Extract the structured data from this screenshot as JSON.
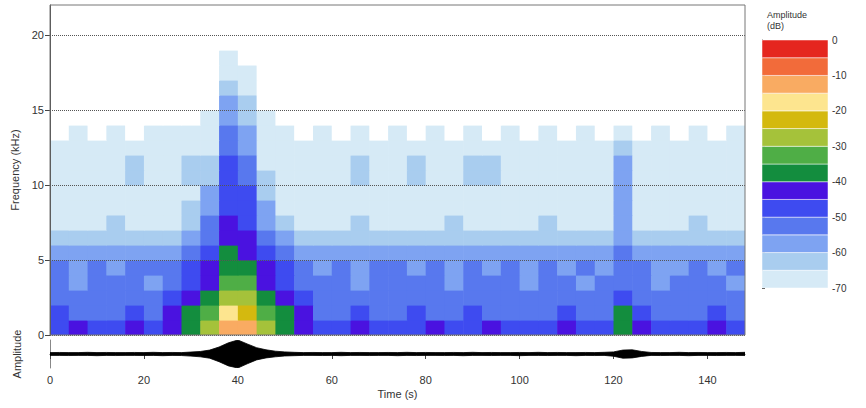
{
  "chart_data": [
    {
      "type": "spectrogram",
      "ylabel": "Frequency (kHz)",
      "xlim": [
        0,
        148
      ],
      "ylim": [
        0,
        22
      ],
      "yticks": [
        0,
        5,
        10,
        15,
        20
      ],
      "grid": true,
      "tick_labels": "y",
      "x_edges": [
        0,
        4,
        8,
        12,
        16,
        20,
        24,
        28,
        32,
        36,
        40,
        44,
        48,
        52,
        56,
        60,
        64,
        68,
        72,
        76,
        80,
        84,
        88,
        92,
        96,
        100,
        104,
        108,
        112,
        116,
        120,
        124,
        128,
        132,
        136,
        140,
        144,
        148
      ],
      "y_edges": [
        0,
        1,
        2,
        3,
        4,
        5,
        6,
        7,
        8,
        9,
        10,
        11,
        12,
        13,
        14,
        15,
        16,
        17,
        18,
        19,
        20,
        21,
        22
      ],
      "cells": [
        [
          -47,
          -45,
          -47,
          -46,
          -45,
          -47,
          -42,
          -38,
          -30,
          -15,
          -15,
          -28,
          -36,
          -42,
          -46,
          -47,
          -45,
          -47,
          -46,
          -47,
          -45,
          -47,
          -46,
          -45,
          -47,
          -46,
          -47,
          -45,
          -46,
          -47,
          -40,
          -45,
          -47,
          -46,
          -47,
          -45,
          -47
        ],
        [
          -50,
          -53,
          -51,
          -54,
          -50,
          -52,
          -45,
          -40,
          -33,
          -20,
          -22,
          -32,
          -40,
          -45,
          -51,
          -53,
          -50,
          -54,
          -52,
          -50,
          -53,
          -51,
          -50,
          -54,
          -52,
          -51,
          -53,
          -50,
          -52,
          -51,
          -38,
          -50,
          -52,
          -53,
          -51,
          -50,
          -52
        ],
        [
          -52,
          -55,
          -53,
          -51,
          -54,
          -52,
          -50,
          -45,
          -38,
          -28,
          -28,
          -37,
          -45,
          -50,
          -53,
          -51,
          -55,
          -52,
          -53,
          -51,
          -54,
          -52,
          -53,
          -55,
          -51,
          -53,
          -52,
          -54,
          -51,
          -53,
          -48,
          -52,
          -54,
          -51,
          -53,
          -55,
          -52
        ],
        [
          -54,
          -56,
          -53,
          -55,
          -52,
          -56,
          -52,
          -48,
          -42,
          -33,
          -34,
          -42,
          -48,
          -53,
          -55,
          -53,
          -56,
          -54,
          -52,
          -55,
          -53,
          -56,
          -54,
          -52,
          -55,
          -56,
          -53,
          -54,
          -56,
          -53,
          -52,
          -54,
          -56,
          -53,
          -55,
          -54,
          -56
        ],
        [
          -55,
          -57,
          -54,
          -56,
          -55,
          -53,
          -54,
          -50,
          -45,
          -37,
          -38,
          -45,
          -50,
          -55,
          -56,
          -54,
          -57,
          -55,
          -53,
          -56,
          -55,
          -57,
          -54,
          -56,
          -55,
          -57,
          -54,
          -56,
          -55,
          -57,
          -54,
          -55,
          -57,
          -56,
          -54,
          -56,
          -55
        ],
        [
          -58,
          -60,
          -57,
          -59,
          -58,
          -60,
          -57,
          -54,
          -48,
          -40,
          -41,
          -48,
          -54,
          -58,
          -59,
          -57,
          -60,
          -58,
          -59,
          -57,
          -60,
          -59,
          -58,
          -60,
          -57,
          -59,
          -58,
          -60,
          -59,
          -58,
          -55,
          -59,
          -60,
          -58,
          -59,
          -60,
          -58
        ],
        [
          -63,
          -64,
          -62,
          -64,
          -63,
          -62,
          -62,
          -60,
          -52,
          -42,
          -44,
          -52,
          -60,
          -63,
          -64,
          -62,
          -63,
          -64,
          -62,
          -63,
          -64,
          -63,
          -62,
          -64,
          -63,
          -62,
          -64,
          -63,
          -62,
          -64,
          -58,
          -63,
          -64,
          -62,
          -63,
          -64,
          -63
        ],
        [
          -66,
          -67,
          -66,
          -65,
          -67,
          -66,
          -66,
          -64,
          -55,
          -44,
          -46,
          -56,
          -63,
          -66,
          -67,
          -66,
          -65,
          -67,
          -66,
          -67,
          -66,
          -65,
          -67,
          -66,
          -67,
          -66,
          -65,
          -67,
          -66,
          -67,
          -60,
          -66,
          -67,
          -66,
          -65,
          -67,
          -66
        ],
        [
          -67,
          -68,
          -67,
          -68,
          -66,
          -67,
          -67,
          -65,
          -58,
          -46,
          -48,
          -60,
          -66,
          -67,
          -68,
          -67,
          -66,
          -68,
          -67,
          -68,
          -66,
          -67,
          -67,
          -66,
          -68,
          -67,
          -68,
          -67,
          -66,
          -68,
          -60,
          -67,
          -68,
          -67,
          -66,
          -68,
          -67
        ],
        [
          -67,
          -68,
          -68,
          -67,
          -66,
          -68,
          -68,
          -66,
          -60,
          -47,
          -50,
          -62,
          -67,
          -68,
          -67,
          -68,
          -66,
          -67,
          -68,
          -67,
          -66,
          -68,
          -67,
          -66,
          -68,
          -67,
          -67,
          -68,
          -67,
          -68,
          -58,
          -68,
          -67,
          -68,
          -67,
          -66,
          -68
        ],
        [
          -68,
          -68,
          -67,
          -68,
          -64,
          -68,
          -68,
          -64,
          -62,
          -48,
          -52,
          -64,
          -67,
          -68,
          -68,
          -67,
          -64,
          -68,
          -67,
          -64,
          -68,
          -67,
          -64,
          -64,
          -68,
          -67,
          -68,
          -67,
          -68,
          -67,
          -56,
          -68,
          -67,
          -68,
          -68,
          -67,
          -68
        ],
        [
          -69,
          -68,
          -69,
          -68,
          -65,
          -69,
          -68,
          -65,
          -64,
          -50,
          -54,
          -66,
          -68,
          -69,
          -68,
          -69,
          -65,
          -68,
          -69,
          -65,
          -68,
          -69,
          -65,
          -65,
          -69,
          -68,
          -69,
          -68,
          -69,
          -68,
          -58,
          -69,
          -68,
          -69,
          -68,
          -69,
          -69
        ],
        [
          -70,
          -69,
          -70,
          -69,
          -66,
          -70,
          -69,
          -66,
          -66,
          -52,
          -56,
          -68,
          -69,
          -70,
          -69,
          -70,
          -67,
          -69,
          -70,
          -67,
          -69,
          -70,
          -67,
          -67,
          -70,
          -69,
          -70,
          -69,
          -70,
          -69,
          -62,
          -70,
          -69,
          -70,
          -69,
          -70,
          -69
        ],
        [
          -71,
          -70,
          -71,
          -70,
          -71,
          -70,
          -70,
          -69,
          -68,
          -55,
          -58,
          -69,
          -70,
          -71,
          -70,
          -71,
          -70,
          -71,
          -70,
          -71,
          -70,
          -71,
          -70,
          -71,
          -70,
          -71,
          -70,
          -71,
          -70,
          -71,
          -66,
          -71,
          -70,
          -71,
          -70,
          -71,
          -70
        ],
        [
          -72,
          -71,
          -72,
          -72,
          -71,
          -72,
          -72,
          -71,
          -70,
          -57,
          -61,
          -70,
          -72,
          -72,
          -72,
          -71,
          -72,
          -72,
          -71,
          -72,
          -72,
          -71,
          -72,
          -72,
          -71,
          -72,
          -72,
          -71,
          -72,
          -72,
          -72,
          -71,
          -72,
          -72,
          -71,
          -72,
          -72
        ],
        [
          -73,
          -73,
          -73,
          -73,
          -73,
          -73,
          -73,
          -73,
          -72,
          -60,
          -64,
          -72,
          -73,
          -73,
          -73,
          -73,
          -73,
          -73,
          -73,
          -73,
          -73,
          -73,
          -73,
          -73,
          -73,
          -73,
          -73,
          -73,
          -73,
          -73,
          -73,
          -73,
          -73,
          -73,
          -73,
          -73,
          -73
        ],
        [
          -74,
          -74,
          -74,
          -74,
          -74,
          -74,
          -74,
          -74,
          -73,
          -63,
          -67,
          -73,
          -74,
          -74,
          -74,
          -74,
          -74,
          -74,
          -74,
          -74,
          -74,
          -74,
          -74,
          -74,
          -74,
          -74,
          -74,
          -74,
          -74,
          -74,
          -74,
          -74,
          -74,
          -74,
          -74,
          -74,
          -74
        ],
        [
          -75,
          -75,
          -75,
          -75,
          -75,
          -75,
          -75,
          -75,
          -75,
          -66,
          -69,
          -75,
          -75,
          -75,
          -75,
          -75,
          -75,
          -75,
          -75,
          -75,
          -75,
          -75,
          -75,
          -75,
          -75,
          -75,
          -75,
          -75,
          -75,
          -75,
          -75,
          -75,
          -75,
          -75,
          -75,
          -75,
          -75
        ],
        [
          -75,
          -75,
          -75,
          -75,
          -75,
          -75,
          -75,
          -75,
          -75,
          -69,
          -72,
          -75,
          -75,
          -75,
          -75,
          -75,
          -75,
          -75,
          -75,
          -75,
          -75,
          -75,
          -75,
          -75,
          -75,
          -75,
          -75,
          -75,
          -75,
          -75,
          -75,
          -75,
          -75,
          -75,
          -75,
          -75,
          -75
        ],
        [
          -75,
          -75,
          -75,
          -75,
          -75,
          -75,
          -75,
          -75,
          -75,
          -75,
          -75,
          -75,
          -75,
          -75,
          -75,
          -75,
          -75,
          -75,
          -75,
          -75,
          -75,
          -75,
          -75,
          -75,
          -75,
          -75,
          -75,
          -75,
          -75,
          -75,
          -75,
          -75,
          -75,
          -75,
          -75,
          -75,
          -75
        ],
        [
          -75,
          -75,
          -75,
          -75,
          -75,
          -75,
          -75,
          -75,
          -75,
          -75,
          -75,
          -75,
          -75,
          -75,
          -75,
          -75,
          -75,
          -75,
          -75,
          -75,
          -75,
          -75,
          -75,
          -75,
          -75,
          -75,
          -75,
          -75,
          -75,
          -75,
          -75,
          -75,
          -75,
          -75,
          -75,
          -75,
          -75
        ],
        [
          -75,
          -75,
          -75,
          -75,
          -75,
          -75,
          -75,
          -75,
          -75,
          -75,
          -75,
          -75,
          -75,
          -75,
          -75,
          -75,
          -75,
          -75,
          -75,
          -75,
          -75,
          -75,
          -75,
          -75,
          -75,
          -75,
          -75,
          -75,
          -75,
          -75,
          -75,
          -75,
          -75,
          -75,
          -75,
          -75,
          -75
        ]
      ],
      "colorbar": {
        "title": "Amplitude (dB)",
        "range": [
          -70,
          0
        ],
        "ticks": [
          0,
          -10,
          -20,
          -30,
          -40,
          -50,
          -60,
          -70
        ],
        "bins": [
          -70,
          -65,
          -60,
          -55,
          -50,
          -45,
          -40,
          -35,
          -30,
          -25,
          -20,
          -15,
          -10,
          -5,
          0
        ],
        "colors": [
          "#d6eaf6",
          "#a9cdef",
          "#7ea3f2",
          "#5878ee",
          "#3e4bf0",
          "#4a12e0",
          "#138d3e",
          "#4fae46",
          "#a5c23a",
          "#d4b90f",
          "#fde58f",
          "#f9ab62",
          "#f26b3a",
          "#e5261f"
        ]
      }
    },
    {
      "type": "line",
      "xlabel": "Time (s)",
      "ylabel": "Amplitude",
      "xlim": [
        0,
        148
      ],
      "xticks": [
        0,
        20,
        40,
        60,
        80,
        100,
        120,
        140
      ],
      "ylim": [
        -1,
        1
      ],
      "tick_labels": "x",
      "color": "#000000",
      "x": [
        0,
        2,
        4,
        6,
        8,
        10,
        12,
        14,
        16,
        18,
        20,
        22,
        24,
        26,
        28,
        30,
        32,
        34,
        36,
        38,
        40,
        42,
        44,
        46,
        48,
        50,
        52,
        54,
        56,
        58,
        60,
        62,
        64,
        66,
        68,
        70,
        72,
        74,
        76,
        78,
        80,
        82,
        84,
        86,
        88,
        90,
        92,
        94,
        96,
        98,
        100,
        102,
        104,
        106,
        108,
        110,
        112,
        114,
        116,
        118,
        120,
        122,
        124,
        126,
        128,
        130,
        132,
        134,
        136,
        138,
        140,
        142,
        144,
        146,
        148
      ],
      "upper": [
        0.1,
        0.11,
        0.1,
        0.1,
        0.12,
        0.1,
        0.11,
        0.1,
        0.1,
        0.11,
        0.1,
        0.12,
        0.1,
        0.11,
        0.1,
        0.14,
        0.18,
        0.28,
        0.5,
        0.8,
        1.0,
        0.72,
        0.45,
        0.3,
        0.2,
        0.15,
        0.12,
        0.1,
        0.11,
        0.1,
        0.1,
        0.12,
        0.1,
        0.11,
        0.1,
        0.1,
        0.11,
        0.1,
        0.12,
        0.1,
        0.11,
        0.1,
        0.1,
        0.11,
        0.1,
        0.12,
        0.1,
        0.11,
        0.1,
        0.1,
        0.11,
        0.1,
        0.12,
        0.1,
        0.11,
        0.1,
        0.1,
        0.11,
        0.1,
        0.12,
        0.15,
        0.28,
        0.3,
        0.18,
        0.11,
        0.1,
        0.1,
        0.12,
        0.1,
        0.11,
        0.1,
        0.1,
        0.11,
        0.1,
        0.12
      ],
      "lower": [
        -0.1,
        -0.1,
        -0.11,
        -0.1,
        -0.1,
        -0.12,
        -0.1,
        -0.11,
        -0.1,
        -0.1,
        -0.11,
        -0.1,
        -0.12,
        -0.1,
        -0.11,
        -0.15,
        -0.2,
        -0.3,
        -0.55,
        -0.85,
        -1.0,
        -0.7,
        -0.42,
        -0.28,
        -0.2,
        -0.14,
        -0.12,
        -0.1,
        -0.1,
        -0.11,
        -0.1,
        -0.12,
        -0.1,
        -0.1,
        -0.11,
        -0.1,
        -0.1,
        -0.12,
        -0.1,
        -0.11,
        -0.1,
        -0.1,
        -0.11,
        -0.1,
        -0.12,
        -0.1,
        -0.1,
        -0.11,
        -0.1,
        -0.1,
        -0.12,
        -0.1,
        -0.1,
        -0.11,
        -0.1,
        -0.1,
        -0.12,
        -0.1,
        -0.11,
        -0.1,
        -0.16,
        -0.3,
        -0.28,
        -0.17,
        -0.1,
        -0.11,
        -0.1,
        -0.1,
        -0.12,
        -0.1,
        -0.1,
        -0.11,
        -0.1,
        -0.1,
        -0.11
      ]
    }
  ]
}
